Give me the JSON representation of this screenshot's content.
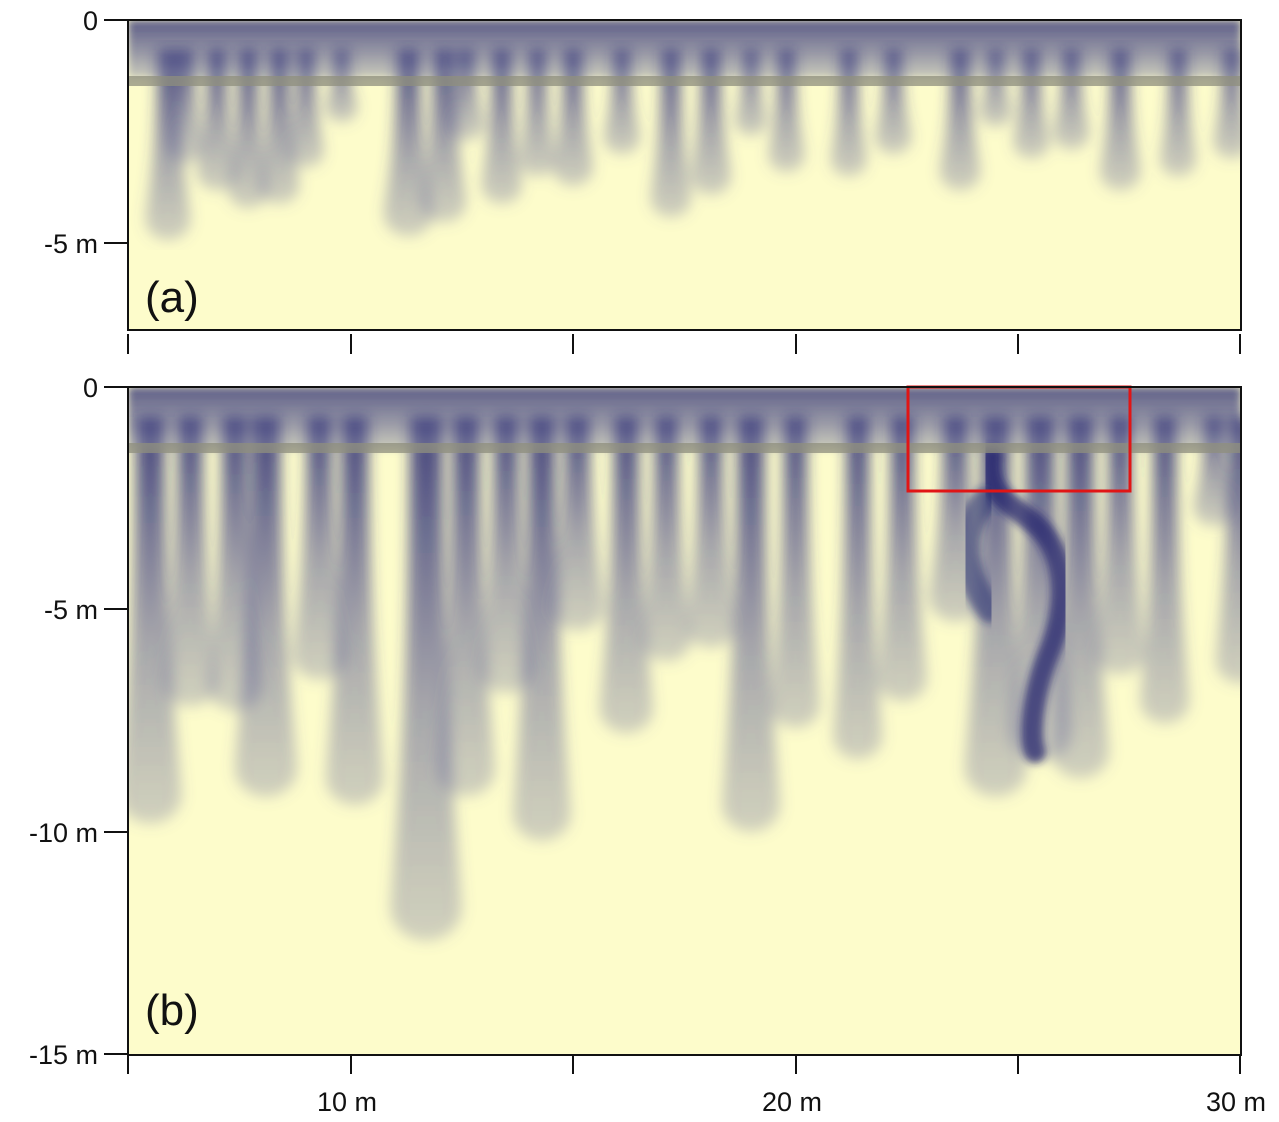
{
  "colors": {
    "background": "#fdfccb",
    "plume": "#23246e",
    "clay_layer": "#8f8f7e",
    "highlight_box": "#e11515",
    "frame": "#111111"
  },
  "x_axis": {
    "tick_labels": [
      "10 m",
      "20 m",
      "30 m"
    ],
    "range_m": [
      5,
      30
    ]
  },
  "panels": [
    {
      "id": "a",
      "label": "(a)",
      "y_tick_labels": [
        "0",
        "-5 m"
      ],
      "depth_range_m": [
        0,
        -7
      ],
      "clay_layer_depth_m": -1.3,
      "plumes": [
        {
          "x": 5.9,
          "d": 4.8,
          "w": 0.5
        },
        {
          "x": 6.3,
          "d": 3.1,
          "w": 0.4
        },
        {
          "x": 7.0,
          "d": 3.7,
          "w": 0.45
        },
        {
          "x": 7.7,
          "d": 4.1,
          "w": 0.45
        },
        {
          "x": 8.4,
          "d": 4.0,
          "w": 0.45
        },
        {
          "x": 9.0,
          "d": 3.2,
          "w": 0.4
        },
        {
          "x": 9.8,
          "d": 2.2,
          "w": 0.35
        },
        {
          "x": 11.3,
          "d": 4.7,
          "w": 0.55
        },
        {
          "x": 12.1,
          "d": 4.4,
          "w": 0.5
        },
        {
          "x": 12.6,
          "d": 2.6,
          "w": 0.4
        },
        {
          "x": 13.4,
          "d": 4.0,
          "w": 0.45
        },
        {
          "x": 14.2,
          "d": 3.4,
          "w": 0.4
        },
        {
          "x": 15.0,
          "d": 3.6,
          "w": 0.45
        },
        {
          "x": 16.1,
          "d": 2.9,
          "w": 0.4
        },
        {
          "x": 17.2,
          "d": 4.3,
          "w": 0.45
        },
        {
          "x": 18.1,
          "d": 3.8,
          "w": 0.45
        },
        {
          "x": 19.0,
          "d": 2.5,
          "w": 0.35
        },
        {
          "x": 19.8,
          "d": 3.3,
          "w": 0.4
        },
        {
          "x": 21.2,
          "d": 3.4,
          "w": 0.4
        },
        {
          "x": 22.2,
          "d": 2.9,
          "w": 0.4
        },
        {
          "x": 23.7,
          "d": 3.7,
          "w": 0.45
        },
        {
          "x": 24.5,
          "d": 2.3,
          "w": 0.35
        },
        {
          "x": 25.3,
          "d": 3.0,
          "w": 0.4
        },
        {
          "x": 26.2,
          "d": 2.8,
          "w": 0.4
        },
        {
          "x": 27.3,
          "d": 3.7,
          "w": 0.45
        },
        {
          "x": 28.6,
          "d": 3.4,
          "w": 0.4
        },
        {
          "x": 29.8,
          "d": 3.0,
          "w": 0.4
        }
      ]
    },
    {
      "id": "b",
      "label": "(b)",
      "y_tick_labels": [
        "0",
        "-5 m",
        "-10 m",
        "-15 m"
      ],
      "depth_range_m": [
        0,
        -15
      ],
      "clay_layer_depth_m": -1.4,
      "highlight_box": {
        "x0": 22.5,
        "x1": 27.5,
        "y0": 0,
        "y1": -2.4
      },
      "plumes": [
        {
          "x": 5.5,
          "d": 9.6,
          "w": 0.7
        },
        {
          "x": 6.4,
          "d": 7.0,
          "w": 0.6
        },
        {
          "x": 7.4,
          "d": 7.1,
          "w": 0.6
        },
        {
          "x": 8.1,
          "d": 9.0,
          "w": 0.7
        },
        {
          "x": 9.3,
          "d": 6.4,
          "w": 0.6
        },
        {
          "x": 10.1,
          "d": 9.2,
          "w": 0.65
        },
        {
          "x": 11.7,
          "d": 12.2,
          "w": 0.8
        },
        {
          "x": 12.6,
          "d": 9.0,
          "w": 0.65
        },
        {
          "x": 13.5,
          "d": 6.7,
          "w": 0.6
        },
        {
          "x": 14.3,
          "d": 10.0,
          "w": 0.65
        },
        {
          "x": 15.1,
          "d": 5.3,
          "w": 0.6
        },
        {
          "x": 16.2,
          "d": 7.6,
          "w": 0.6
        },
        {
          "x": 17.1,
          "d": 6.0,
          "w": 0.55
        },
        {
          "x": 18.1,
          "d": 5.7,
          "w": 0.55
        },
        {
          "x": 19.0,
          "d": 9.8,
          "w": 0.65
        },
        {
          "x": 20.0,
          "d": 7.5,
          "w": 0.55
        },
        {
          "x": 21.4,
          "d": 8.2,
          "w": 0.55
        },
        {
          "x": 22.4,
          "d": 6.9,
          "w": 0.55
        },
        {
          "x": 23.6,
          "d": 5.1,
          "w": 0.6
        },
        {
          "x": 24.5,
          "d": 9.0,
          "w": 0.7
        },
        {
          "x": 25.5,
          "d": 8.2,
          "w": 0.7
        },
        {
          "x": 26.4,
          "d": 8.6,
          "w": 0.65
        },
        {
          "x": 27.3,
          "d": 6.3,
          "w": 0.55
        },
        {
          "x": 28.3,
          "d": 7.4,
          "w": 0.55
        },
        {
          "x": 29.4,
          "d": 3.0,
          "w": 0.45
        },
        {
          "x": 30.0,
          "d": 6.5,
          "w": 0.55
        }
      ]
    }
  ]
}
